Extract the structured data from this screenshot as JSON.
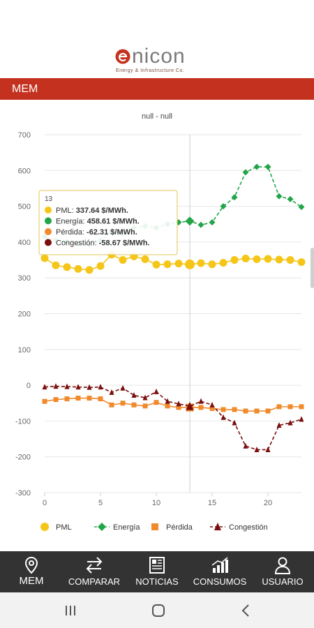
{
  "brand": {
    "name": "nicon",
    "initial": "e",
    "tagline": "Energy & Infrastructure Co."
  },
  "header": {
    "title": "MEM"
  },
  "chart_data": {
    "type": "line",
    "title": "null - null",
    "x": [
      0,
      1,
      2,
      3,
      4,
      5,
      6,
      7,
      8,
      9,
      10,
      11,
      12,
      13,
      14,
      15,
      16,
      17,
      18,
      19,
      20,
      21,
      22,
      23
    ],
    "xticks": [
      0,
      5,
      10,
      15,
      20
    ],
    "yticks": [
      700,
      600,
      500,
      400,
      300,
      200,
      100,
      0,
      -100,
      -200,
      -300
    ],
    "ylim": [
      -300,
      700
    ],
    "xlim": [
      0,
      23
    ],
    "grid": "horizontal",
    "legend_position": "bottom",
    "series": [
      {
        "name": "PML",
        "marker": "circle",
        "color": "#f5c518",
        "values": [
          355,
          335,
          330,
          325,
          322,
          333,
          365,
          350,
          360,
          352,
          337,
          338,
          340,
          337.64,
          341,
          338,
          342,
          350,
          354,
          352,
          353,
          351,
          350,
          344
        ]
      },
      {
        "name": "Energía",
        "marker": "diamond",
        "color": "#22a548",
        "values": [
          415,
          405,
          400,
          395,
          392,
          405,
          430,
          425,
          440,
          445,
          440,
          450,
          455,
          458.61,
          448,
          455,
          500,
          525,
          595,
          610,
          610,
          528,
          520,
          498
        ]
      },
      {
        "name": "Pérdida",
        "marker": "square",
        "color": "#f08a2c",
        "values": [
          -45,
          -40,
          -38,
          -36,
          -36,
          -38,
          -55,
          -50,
          -55,
          -58,
          -48,
          -58,
          -62,
          -62.31,
          -62,
          -65,
          -68,
          -68,
          -72,
          -72,
          -72,
          -60,
          -60,
          -60
        ]
      },
      {
        "name": "Congestión",
        "marker": "triangle",
        "color": "#7a0e0e",
        "values": [
          -5,
          -3,
          -4,
          -5,
          -6,
          -5,
          -20,
          -8,
          -28,
          -35,
          -18,
          -45,
          -52,
          -58.67,
          -45,
          -55,
          -90,
          -105,
          -170,
          -180,
          -180,
          -112,
          -105,
          -95
        ]
      }
    ],
    "hover_index": 13,
    "tooltip": {
      "title": "13",
      "lines": [
        {
          "label": "PML",
          "value": "337.64 $/MWh.",
          "color": "#f5c518"
        },
        {
          "label": "Energía",
          "value": "458.61 $/MWh.",
          "color": "#22a548"
        },
        {
          "label": "Pérdida",
          "value": "-62.31 $/MWh.",
          "color": "#f08a2c"
        },
        {
          "label": "Congestión",
          "value": "-58.67 $/MWh.",
          "color": "#7a0e0e"
        }
      ]
    }
  },
  "nav": {
    "items": [
      {
        "id": "mem",
        "label": "MEM",
        "icon": "map-pin-icon"
      },
      {
        "id": "comparar",
        "label": "COMPARAR",
        "icon": "swap-arrows-icon"
      },
      {
        "id": "noticias",
        "label": "NOTICIAS",
        "icon": "newspaper-icon"
      },
      {
        "id": "consumos",
        "label": "CONSUMOS",
        "icon": "bar-chart-icon"
      },
      {
        "id": "usuario",
        "label": "USUARIO",
        "icon": "user-icon"
      }
    ]
  },
  "system_nav": {
    "recents": "recents-icon",
    "home": "home-icon",
    "back": "back-icon"
  },
  "colors": {
    "accent": "#c4311e",
    "nav_bg": "#333333"
  }
}
